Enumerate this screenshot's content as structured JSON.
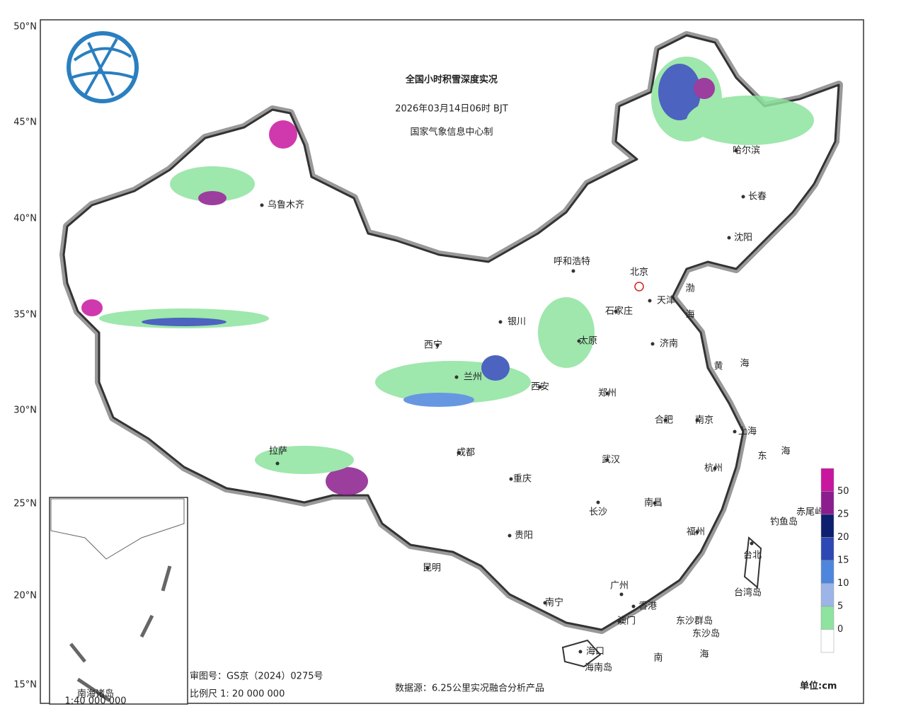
{
  "header": {
    "title": "全国小时积雪深度实况",
    "subtitle": "2026年03月14日06时 BJT",
    "producer": "国家气象信息中心制"
  },
  "lat_labels": [
    "50°N",
    "45°N",
    "40°N",
    "35°N",
    "30°N",
    "25°N",
    "20°N",
    "15°N"
  ],
  "capital": "北京",
  "cities": [
    "乌鲁木齐",
    "哈尔滨",
    "长春",
    "沈阳",
    "呼和浩特",
    "天津",
    "石家庄",
    "银川",
    "太原",
    "济南",
    "西宁",
    "兰州",
    "西安",
    "郑州",
    "合肥",
    "南京",
    "上海",
    "拉萨",
    "成都",
    "武汉",
    "杭州",
    "重庆",
    "长沙",
    "南昌",
    "贵阳",
    "福州",
    "台北",
    "昆明",
    "广州",
    "南宁",
    "香港",
    "澳门",
    "海口"
  ],
  "seas": [
    "渤",
    "海",
    "黄",
    "海",
    "东",
    "海",
    "南",
    "海"
  ],
  "islands": [
    "钓鱼岛",
    "赤尾屿",
    "台湾岛",
    "东沙群岛",
    "东沙岛",
    "海南岛"
  ],
  "legend": {
    "values": [
      50,
      25,
      20,
      15,
      10,
      5,
      0
    ],
    "colors": [
      "#c8169f",
      "#8b1d8e",
      "#0d1f6e",
      "#2d48b4",
      "#4d86dc",
      "#9cb5e6",
      "#8ee39f",
      "#ffffff"
    ],
    "unit": "单位:cm"
  },
  "inset": {
    "title": "南海诸岛",
    "scale": "1:40 000 000"
  },
  "footer": {
    "approval": "审图号：GS京（2024）0275号",
    "scale": "比例尺 1: 20 000 000",
    "source": "数据源：6.25公里实况融合分析产品"
  }
}
